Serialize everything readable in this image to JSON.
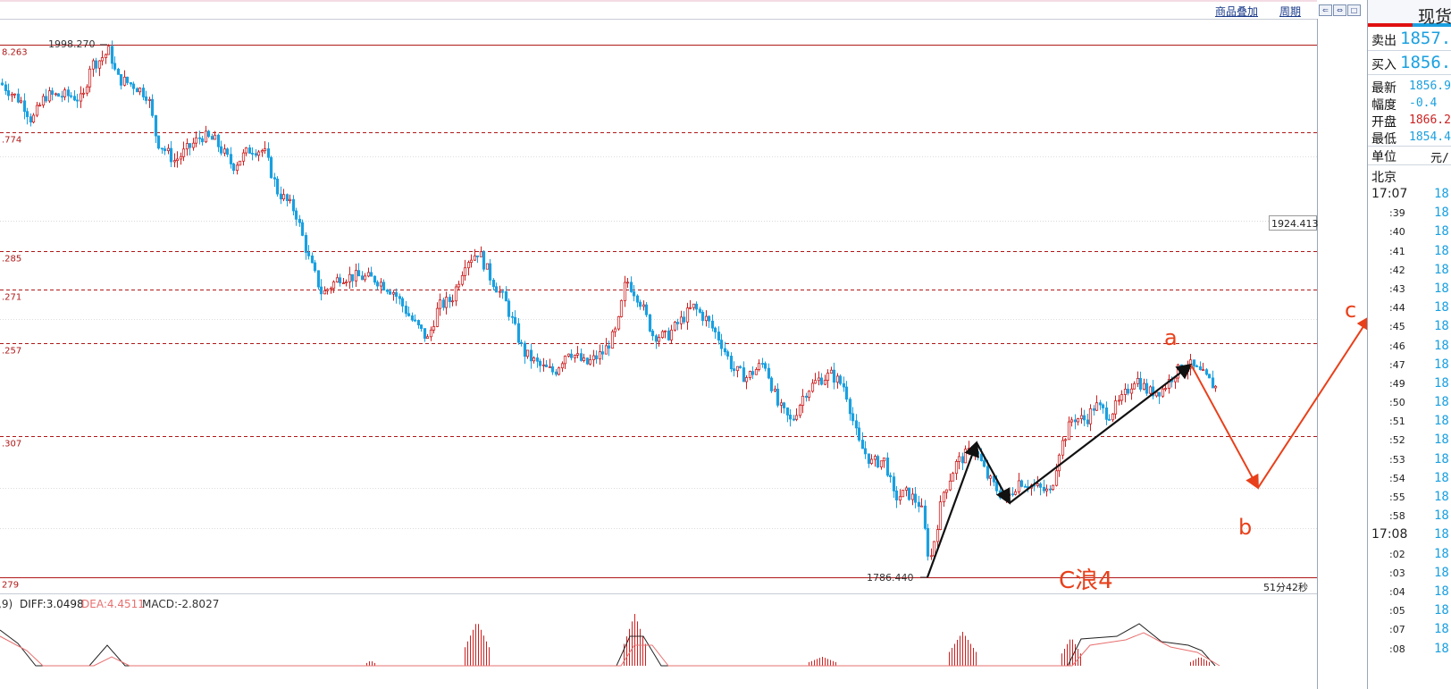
{
  "toolbar": {
    "overlay_label": "商品叠加",
    "period_label": "周期",
    "buttons": [
      "⇐",
      "⇔",
      "□"
    ]
  },
  "chart_data": {
    "type": "candlestick",
    "y_range": [
      1775,
      2000
    ],
    "high_label": "1998.270",
    "low_label": "1786.440",
    "side_price_label": "1924.413",
    "fib_levels": [
      {
        "value": 1998.27,
        "label": "8.263",
        "style": "solid"
      },
      {
        "value": 1963.33,
        "label": ".774",
        "style": "dashed"
      },
      {
        "value": 1928.4,
        "label": "",
        "style": "dotted"
      },
      {
        "value": 1916.0,
        "label": ".285",
        "style": "dashed"
      },
      {
        "value": 1901.0,
        "label": ".271",
        "style": "dashed"
      },
      {
        "value": 1879.5,
        "label": ".257",
        "style": "dashed"
      },
      {
        "value": 1842.5,
        "label": ".307",
        "style": "dashed"
      },
      {
        "value": 1786.44,
        "label": "279",
        "style": "solid"
      }
    ],
    "annotations": [
      {
        "text": "a",
        "color": "#e8401a"
      },
      {
        "text": "b",
        "color": "#e8401a"
      },
      {
        "text": "c",
        "color": "#e8401a"
      },
      {
        "text": "C浪4",
        "color": "#e8401a"
      }
    ],
    "wave_black": [
      [
        0,
        1786.44
      ],
      [
        1,
        1840
      ],
      [
        2,
        1816
      ],
      [
        3,
        1871
      ]
    ],
    "wave_red": [
      [
        3,
        1871
      ],
      [
        4,
        1822
      ],
      [
        5,
        1890
      ]
    ],
    "countdown": "51分42秒",
    "macd": {
      "params": ",9)",
      "diff_label": "DIFF:3.0498",
      "dea_label": "DEA:4.4511",
      "macd_label": "MACD:-2.8027",
      "diff_color": "#222222",
      "dea_color": "#e87070",
      "hist_color": "#cc2222"
    },
    "candles_summary": "downtrend from 1998.27 to 1786.44 then rebound to ~1871",
    "up_color": "#cc2222",
    "down_color": "#1aa0e0"
  },
  "panel": {
    "title": "现货",
    "sell_label": "卖出",
    "sell_value": "1857.",
    "buy_label": "买入",
    "buy_value": "1856.",
    "info": [
      {
        "label": "最新",
        "value": "1856.9",
        "color": "#1aa0e0"
      },
      {
        "label": "幅度",
        "value": "-0.4",
        "color": "#1aa0e0"
      },
      {
        "label": "开盘",
        "value": "1866.2",
        "color": "#cc2222"
      },
      {
        "label": "最低",
        "value": "1854.4",
        "color": "#1aa0e0"
      }
    ],
    "unit_label": "单位",
    "unit_value": "元/",
    "location": "北京",
    "ticks": [
      {
        "time": "17:07",
        "price": "18",
        "big": true
      },
      {
        "time": ":39",
        "price": "18"
      },
      {
        "time": ":40",
        "price": "18"
      },
      {
        "time": ":41",
        "price": "18"
      },
      {
        "time": ":42",
        "price": "18"
      },
      {
        "time": ":43",
        "price": "18"
      },
      {
        "time": ":44",
        "price": "18"
      },
      {
        "time": ":45",
        "price": "18"
      },
      {
        "time": ":46",
        "price": "18"
      },
      {
        "time": ":47",
        "price": "18"
      },
      {
        "time": ":49",
        "price": "18"
      },
      {
        "time": ":50",
        "price": "18"
      },
      {
        "time": ":51",
        "price": "18"
      },
      {
        "time": ":52",
        "price": "18"
      },
      {
        "time": ":53",
        "price": "18"
      },
      {
        "time": ":54",
        "price": "18"
      },
      {
        "time": ":55",
        "price": "18"
      },
      {
        "time": ":58",
        "price": "18"
      },
      {
        "time": "17:08",
        "price": "18",
        "big": true
      },
      {
        "time": ":02",
        "price": "18"
      },
      {
        "time": ":03",
        "price": "18"
      },
      {
        "time": ":04",
        "price": "18"
      },
      {
        "time": ":05",
        "price": "18"
      },
      {
        "time": ":07",
        "price": "18"
      },
      {
        "time": ":08",
        "price": "18"
      }
    ]
  }
}
